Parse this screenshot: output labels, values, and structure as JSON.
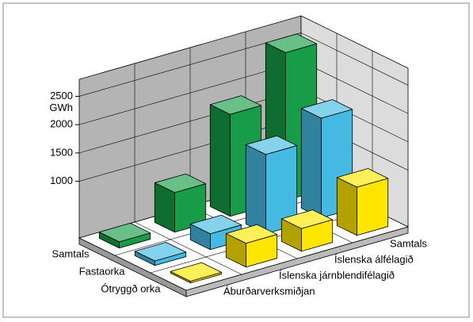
{
  "chart_data": {
    "type": "bar",
    "ylabel": "GWh",
    "categories": [
      "Áburðarverksmiðjan",
      "Íslenska járnblendifélagið",
      "Íslenska álfélagið",
      "Samtals"
    ],
    "series": [
      {
        "name": "Samtals",
        "color": "#179c48",
        "values": [
          110,
          700,
          1800,
          2610
        ]
      },
      {
        "name": "Fastaorka",
        "color": "#44b9e2",
        "values": [
          80,
          280,
          1400,
          1760
        ]
      },
      {
        "name": "Ótryggð orka",
        "color": "#ffe600",
        "values": [
          30,
          420,
          400,
          850
        ]
      }
    ],
    "ylim": [
      0,
      2800
    ],
    "yticks": [
      1000,
      1500,
      2000,
      2500
    ],
    "grid": true
  }
}
